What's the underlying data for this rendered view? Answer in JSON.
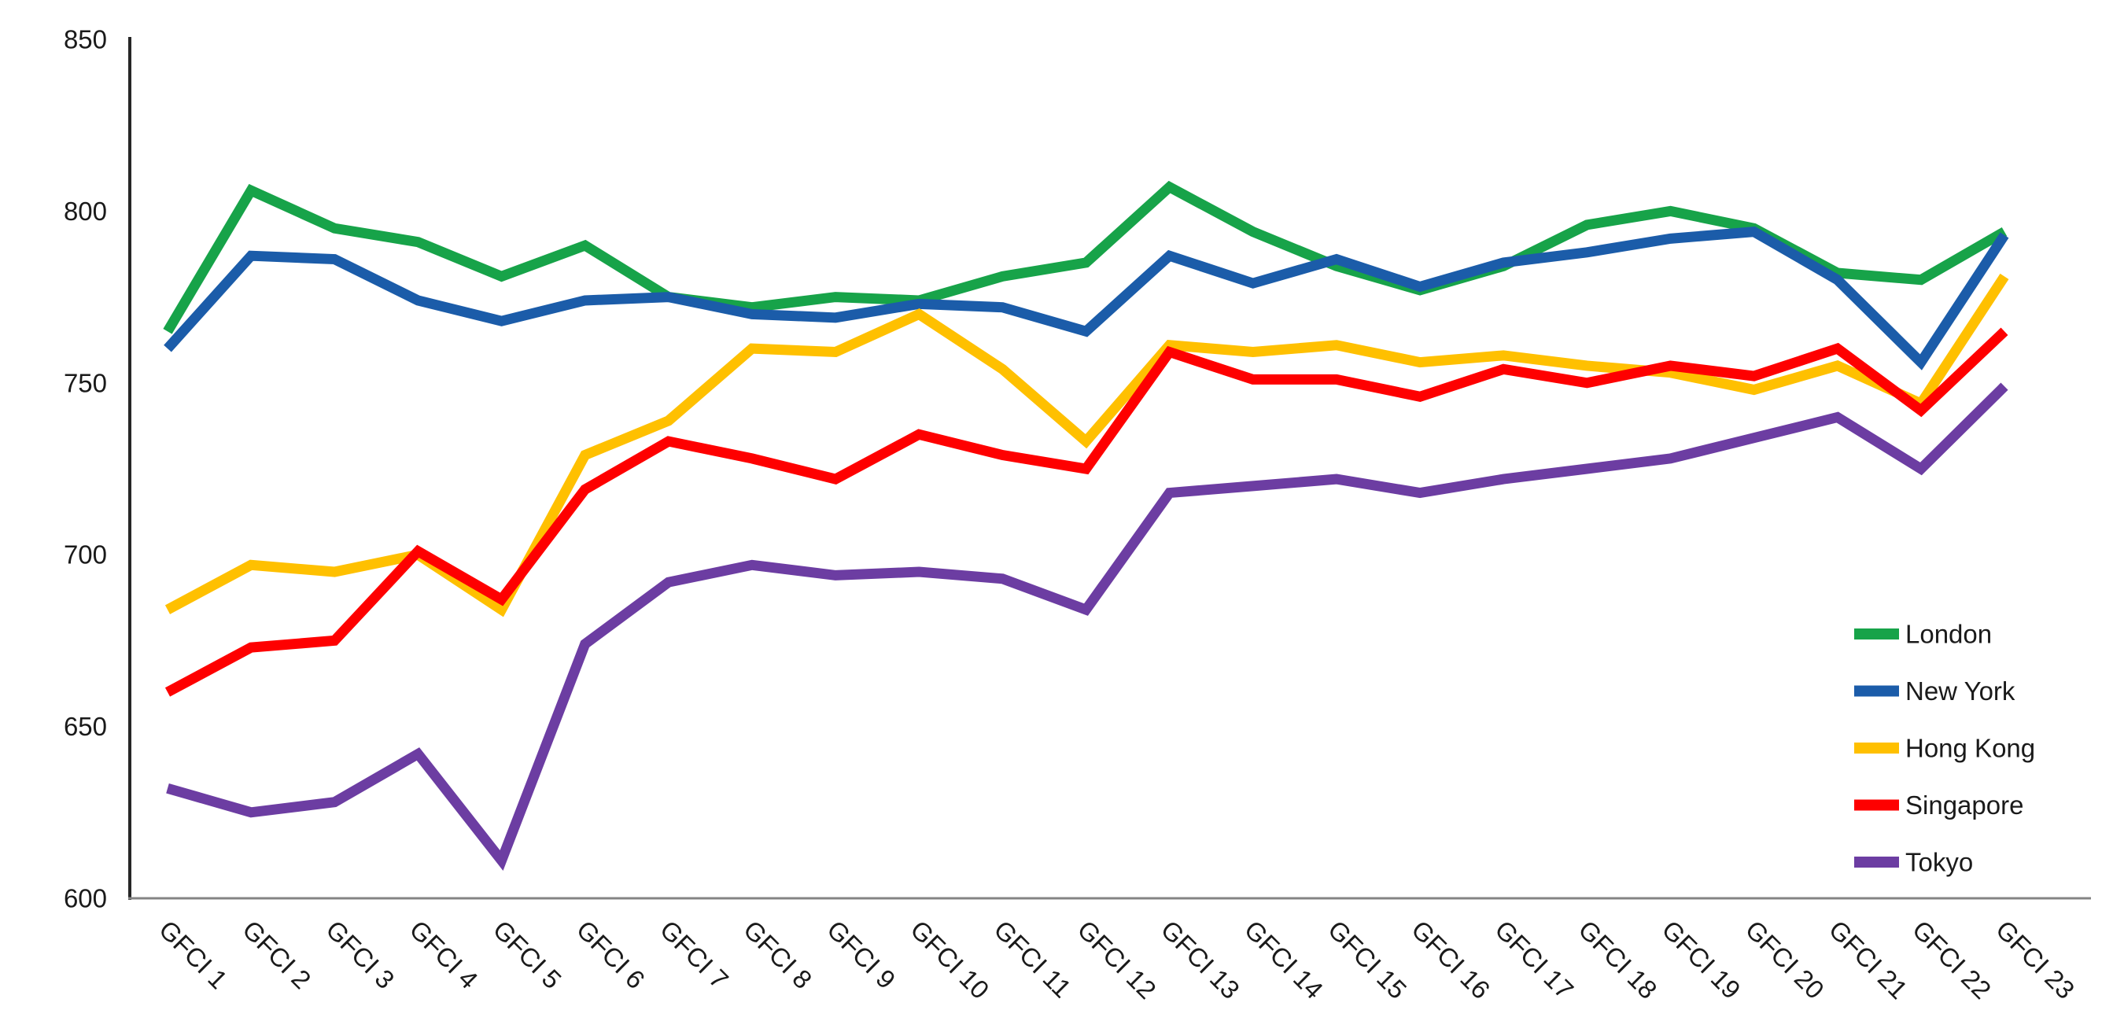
{
  "chart_data": {
    "type": "line",
    "title": "",
    "xlabel": "",
    "ylabel": "",
    "ylim": [
      600,
      850
    ],
    "yticks": [
      600,
      650,
      700,
      750,
      800,
      850
    ],
    "grid": false,
    "legend_position": "right-lower",
    "categories": [
      "GFCI 1",
      "GFCI 2",
      "GFCI 3",
      "GFCI 4",
      "GFCI 5",
      "GFCI 6",
      "GFCI 7",
      "GFCI 8",
      "GFCI 9",
      "GFCI 10",
      "GFCI 11",
      "GFCI 12",
      "GFCI 13",
      "GFCI 14",
      "GFCI 15",
      "GFCI 16",
      "GFCI 17",
      "GFCI 18",
      "GFCI 19",
      "GFCI 20",
      "GFCI 21",
      "GFCI 22",
      "GFCI 23"
    ],
    "series": [
      {
        "name": "London",
        "color": "#17A349",
        "values": [
          765,
          806,
          795,
          791,
          781,
          790,
          775,
          772,
          775,
          774,
          781,
          785,
          807,
          794,
          784,
          777,
          784,
          796,
          800,
          795,
          782,
          780,
          794
        ]
      },
      {
        "name": "New York",
        "color": "#1B5CA9",
        "values": [
          760,
          787,
          786,
          774,
          768,
          774,
          775,
          770,
          769,
          773,
          772,
          765,
          787,
          779,
          786,
          778,
          785,
          788,
          792,
          794,
          780,
          756,
          793
        ]
      },
      {
        "name": "Hong Kong",
        "color": "#FFC000",
        "values": [
          684,
          697,
          695,
          700,
          684,
          729,
          739,
          760,
          759,
          770,
          754,
          733,
          761,
          759,
          761,
          756,
          758,
          755,
          753,
          748,
          755,
          744,
          781
        ]
      },
      {
        "name": "Singapore",
        "color": "#FE0000",
        "values": [
          660,
          673,
          675,
          701,
          687,
          719,
          733,
          728,
          722,
          735,
          729,
          725,
          759,
          751,
          751,
          746,
          754,
          750,
          755,
          752,
          760,
          742,
          765
        ]
      },
      {
        "name": "Tokyo",
        "color": "#6C3DA2",
        "values": [
          632,
          625,
          628,
          642,
          611,
          674,
          692,
          697,
          694,
          695,
          693,
          684,
          718,
          720,
          722,
          718,
          722,
          725,
          728,
          734,
          740,
          725,
          749
        ]
      }
    ],
    "axis": {
      "y_line_color": "#262626",
      "x_line_color": "#848484",
      "label_color": "#1a1a1a"
    }
  }
}
